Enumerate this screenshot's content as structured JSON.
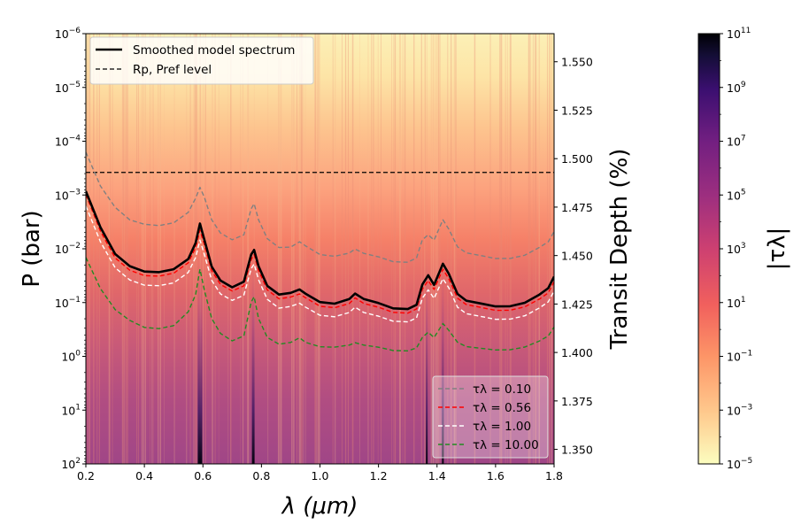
{
  "chart_data": {
    "type": "heatmap",
    "xlabel": "λ (μm)",
    "ylabel_left": "P (bar)",
    "ylabel_right": "Transit Depth (%)",
    "colorbar_label": "|τλ|",
    "x": {
      "range": [
        0.2,
        1.8
      ],
      "ticks": [
        0.2,
        0.4,
        0.6,
        0.8,
        1.0,
        1.2,
        1.4,
        1.6,
        1.8
      ],
      "tick_labels": [
        "0.2",
        "0.4",
        "0.6",
        "0.8",
        "1.0",
        "1.2",
        "1.4",
        "1.6",
        "1.8"
      ]
    },
    "y_left": {
      "scale": "log",
      "inverted": true,
      "range": [
        1e-06,
        100
      ],
      "ticks": [
        1e-06,
        1e-05,
        0.0001,
        0.001,
        0.01,
        0.1,
        1,
        10,
        100
      ],
      "tick_labels": [
        {
          "base": "10",
          "exp": "−6"
        },
        {
          "base": "10",
          "exp": "−5"
        },
        {
          "base": "10",
          "exp": "−4"
        },
        {
          "base": "10",
          "exp": "−3"
        },
        {
          "base": "10",
          "exp": "−2"
        },
        {
          "base": "10",
          "exp": "−1"
        },
        {
          "base": "10",
          "exp": "0"
        },
        {
          "base": "10",
          "exp": "1"
        },
        {
          "base": "10",
          "exp": "2"
        }
      ]
    },
    "y_right": {
      "range": [
        1.3425,
        1.5645
      ],
      "ticks": [
        1.35,
        1.375,
        1.4,
        1.425,
        1.45,
        1.475,
        1.5,
        1.525,
        1.55
      ],
      "tick_labels": [
        "1.350",
        "1.375",
        "1.400",
        "1.425",
        "1.450",
        "1.475",
        "1.500",
        "1.525",
        "1.550"
      ]
    },
    "colorbar": {
      "scale": "log",
      "range": [
        1e-05,
        100000000000.0
      ],
      "colormap": "magma_r",
      "ticks": [
        1e-05,
        0.001,
        0.1,
        10.0,
        1000.0,
        100000.0,
        10000000.0,
        1000000000.0,
        100000000000.0
      ],
      "tick_labels": [
        {
          "base": "10",
          "exp": "−5"
        },
        {
          "base": "10",
          "exp": "−3"
        },
        {
          "base": "10",
          "exp": "−1"
        },
        {
          "base": "10",
          "exp": "1"
        },
        {
          "base": "10",
          "exp": "3"
        },
        {
          "base": "10",
          "exp": "5"
        },
        {
          "base": "10",
          "exp": "7"
        },
        {
          "base": "10",
          "exp": "9"
        },
        {
          "base": "10",
          "exp": "11"
        }
      ]
    },
    "reference_level": {
      "pressure_bar": 0.00038
    },
    "series": [
      {
        "name": "Smoothed model spectrum",
        "axis": "pressure",
        "color": "#000000",
        "style": "solid",
        "points": [
          [
            0.2,
            0.00085
          ],
          [
            0.25,
            0.004
          ],
          [
            0.3,
            0.0125
          ],
          [
            0.35,
            0.021
          ],
          [
            0.4,
            0.0265
          ],
          [
            0.45,
            0.0272
          ],
          [
            0.5,
            0.024
          ],
          [
            0.55,
            0.0155
          ],
          [
            0.575,
            0.0078
          ],
          [
            0.59,
            0.0034
          ],
          [
            0.605,
            0.0068
          ],
          [
            0.63,
            0.0215
          ],
          [
            0.66,
            0.039
          ],
          [
            0.7,
            0.052
          ],
          [
            0.74,
            0.041
          ],
          [
            0.765,
            0.0128
          ],
          [
            0.775,
            0.0105
          ],
          [
            0.79,
            0.021
          ],
          [
            0.82,
            0.049
          ],
          [
            0.86,
            0.071
          ],
          [
            0.9,
            0.066
          ],
          [
            0.93,
            0.057
          ],
          [
            0.95,
            0.068
          ],
          [
            1.0,
            0.098
          ],
          [
            1.05,
            0.105
          ],
          [
            1.1,
            0.086
          ],
          [
            1.12,
            0.068
          ],
          [
            1.15,
            0.086
          ],
          [
            1.2,
            0.102
          ],
          [
            1.25,
            0.128
          ],
          [
            1.3,
            0.132
          ],
          [
            1.33,
            0.11
          ],
          [
            1.35,
            0.046
          ],
          [
            1.37,
            0.031
          ],
          [
            1.39,
            0.047
          ],
          [
            1.42,
            0.019
          ],
          [
            1.44,
            0.029
          ],
          [
            1.47,
            0.069
          ],
          [
            1.5,
            0.092
          ],
          [
            1.55,
            0.104
          ],
          [
            1.6,
            0.118
          ],
          [
            1.65,
            0.117
          ],
          [
            1.7,
            0.101
          ],
          [
            1.75,
            0.071
          ],
          [
            1.78,
            0.054
          ],
          [
            1.8,
            0.033
          ]
        ]
      },
      {
        "name": "τλ = 0.10",
        "axis": "pressure",
        "color": "#808080",
        "style": "dashed",
        "points": [
          [
            0.2,
            0.00016
          ],
          [
            0.25,
            0.00068
          ],
          [
            0.3,
            0.0017
          ],
          [
            0.35,
            0.0029
          ],
          [
            0.4,
            0.0035
          ],
          [
            0.45,
            0.0037
          ],
          [
            0.5,
            0.0033
          ],
          [
            0.55,
            0.0021
          ],
          [
            0.575,
            0.00115
          ],
          [
            0.59,
            0.00072
          ],
          [
            0.605,
            0.0011
          ],
          [
            0.63,
            0.0029
          ],
          [
            0.66,
            0.0051
          ],
          [
            0.7,
            0.0068
          ],
          [
            0.74,
            0.0055
          ],
          [
            0.765,
            0.0018
          ],
          [
            0.775,
            0.00145
          ],
          [
            0.79,
            0.0029
          ],
          [
            0.82,
            0.0065
          ],
          [
            0.86,
            0.0095
          ],
          [
            0.9,
            0.0093
          ],
          [
            0.93,
            0.0074
          ],
          [
            0.95,
            0.0088
          ],
          [
            1.0,
            0.0128
          ],
          [
            1.05,
            0.0138
          ],
          [
            1.1,
            0.012
          ],
          [
            1.12,
            0.0101
          ],
          [
            1.15,
            0.0122
          ],
          [
            1.2,
            0.0141
          ],
          [
            1.25,
            0.0174
          ],
          [
            1.3,
            0.0178
          ],
          [
            1.33,
            0.0148
          ],
          [
            1.35,
            0.0068
          ],
          [
            1.37,
            0.0055
          ],
          [
            1.39,
            0.0069
          ],
          [
            1.42,
            0.0029
          ],
          [
            1.44,
            0.0043
          ],
          [
            1.47,
            0.0092
          ],
          [
            1.5,
            0.0119
          ],
          [
            1.55,
            0.0134
          ],
          [
            1.6,
            0.0152
          ],
          [
            1.65,
            0.0151
          ],
          [
            1.7,
            0.0132
          ],
          [
            1.75,
            0.0094
          ],
          [
            1.78,
            0.0074
          ],
          [
            1.8,
            0.0048
          ]
        ]
      },
      {
        "name": "τλ = 0.56",
        "axis": "pressure",
        "color": "#ff0000",
        "style": "dashed",
        "points": [
          [
            0.2,
            0.00098
          ],
          [
            0.25,
            0.0047
          ],
          [
            0.3,
            0.0148
          ],
          [
            0.35,
            0.025
          ],
          [
            0.4,
            0.0315
          ],
          [
            0.45,
            0.0322
          ],
          [
            0.5,
            0.0285
          ],
          [
            0.55,
            0.0182
          ],
          [
            0.575,
            0.0095
          ],
          [
            0.59,
            0.0045
          ],
          [
            0.605,
            0.0084
          ],
          [
            0.63,
            0.0255
          ],
          [
            0.66,
            0.046
          ],
          [
            0.7,
            0.061
          ],
          [
            0.74,
            0.049
          ],
          [
            0.765,
            0.0158
          ],
          [
            0.775,
            0.0128
          ],
          [
            0.79,
            0.0252
          ],
          [
            0.82,
            0.058
          ],
          [
            0.86,
            0.085
          ],
          [
            0.9,
            0.079
          ],
          [
            0.93,
            0.069
          ],
          [
            0.95,
            0.081
          ],
          [
            1.0,
            0.117
          ],
          [
            1.05,
            0.125
          ],
          [
            1.1,
            0.104
          ],
          [
            1.12,
            0.082
          ],
          [
            1.15,
            0.104
          ],
          [
            1.2,
            0.122
          ],
          [
            1.25,
            0.152
          ],
          [
            1.3,
            0.157
          ],
          [
            1.33,
            0.131
          ],
          [
            1.35,
            0.056
          ],
          [
            1.37,
            0.039
          ],
          [
            1.39,
            0.057
          ],
          [
            1.42,
            0.024
          ],
          [
            1.44,
            0.036
          ],
          [
            1.47,
            0.083
          ],
          [
            1.5,
            0.109
          ],
          [
            1.55,
            0.123
          ],
          [
            1.6,
            0.14
          ],
          [
            1.65,
            0.139
          ],
          [
            1.7,
            0.12
          ],
          [
            1.75,
            0.086
          ],
          [
            1.78,
            0.066
          ],
          [
            1.8,
            0.041
          ]
        ]
      },
      {
        "name": "τλ = 1.00",
        "axis": "pressure",
        "color": "#ffffff",
        "style": "dashed",
        "points": [
          [
            0.2,
            0.0016
          ],
          [
            0.25,
            0.0074
          ],
          [
            0.3,
            0.0225
          ],
          [
            0.35,
            0.038
          ],
          [
            0.4,
            0.0475
          ],
          [
            0.45,
            0.0485
          ],
          [
            0.5,
            0.043
          ],
          [
            0.55,
            0.0275
          ],
          [
            0.575,
            0.0145
          ],
          [
            0.59,
            0.0069
          ],
          [
            0.605,
            0.0128
          ],
          [
            0.63,
            0.0385
          ],
          [
            0.66,
            0.069
          ],
          [
            0.7,
            0.091
          ],
          [
            0.74,
            0.073
          ],
          [
            0.765,
            0.0235
          ],
          [
            0.775,
            0.0192
          ],
          [
            0.79,
            0.0375
          ],
          [
            0.82,
            0.087
          ],
          [
            0.86,
            0.127
          ],
          [
            0.9,
            0.118
          ],
          [
            0.93,
            0.103
          ],
          [
            0.95,
            0.121
          ],
          [
            1.0,
            0.172
          ],
          [
            1.05,
            0.184
          ],
          [
            1.1,
            0.153
          ],
          [
            1.12,
            0.122
          ],
          [
            1.15,
            0.153
          ],
          [
            1.2,
            0.179
          ],
          [
            1.25,
            0.222
          ],
          [
            1.3,
            0.229
          ],
          [
            1.33,
            0.192
          ],
          [
            1.35,
            0.083
          ],
          [
            1.37,
            0.058
          ],
          [
            1.39,
            0.084
          ],
          [
            1.42,
            0.036
          ],
          [
            1.44,
            0.053
          ],
          [
            1.47,
            0.122
          ],
          [
            1.5,
            0.161
          ],
          [
            1.55,
            0.181
          ],
          [
            1.6,
            0.205
          ],
          [
            1.65,
            0.203
          ],
          [
            1.7,
            0.176
          ],
          [
            1.75,
            0.126
          ],
          [
            1.78,
            0.097
          ],
          [
            1.8,
            0.061
          ]
        ]
      },
      {
        "name": "τλ = 10.00",
        "axis": "pressure",
        "color": "#228b22",
        "style": "dashed",
        "points": [
          [
            0.2,
            0.0145
          ],
          [
            0.25,
            0.055
          ],
          [
            0.3,
            0.135
          ],
          [
            0.35,
            0.215
          ],
          [
            0.4,
            0.29
          ],
          [
            0.45,
            0.305
          ],
          [
            0.5,
            0.268
          ],
          [
            0.55,
            0.148
          ],
          [
            0.575,
            0.071
          ],
          [
            0.59,
            0.024
          ],
          [
            0.605,
            0.059
          ],
          [
            0.63,
            0.198
          ],
          [
            0.66,
            0.375
          ],
          [
            0.7,
            0.515
          ],
          [
            0.74,
            0.416
          ],
          [
            0.765,
            0.098
          ],
          [
            0.775,
            0.078
          ],
          [
            0.79,
            0.198
          ],
          [
            0.82,
            0.445
          ],
          [
            0.86,
            0.595
          ],
          [
            0.9,
            0.552
          ],
          [
            0.93,
            0.452
          ],
          [
            0.95,
            0.548
          ],
          [
            1.0,
            0.665
          ],
          [
            1.05,
            0.675
          ],
          [
            1.1,
            0.618
          ],
          [
            1.12,
            0.558
          ],
          [
            1.15,
            0.618
          ],
          [
            1.2,
            0.676
          ],
          [
            1.25,
            0.778
          ],
          [
            1.3,
            0.792
          ],
          [
            1.33,
            0.698
          ],
          [
            1.35,
            0.445
          ],
          [
            1.37,
            0.355
          ],
          [
            1.39,
            0.448
          ],
          [
            1.42,
            0.245
          ],
          [
            1.44,
            0.328
          ],
          [
            1.47,
            0.548
          ],
          [
            1.5,
            0.658
          ],
          [
            1.55,
            0.708
          ],
          [
            1.6,
            0.762
          ],
          [
            1.65,
            0.752
          ],
          [
            1.7,
            0.672
          ],
          [
            1.75,
            0.518
          ],
          [
            1.78,
            0.418
          ],
          [
            1.8,
            0.285
          ]
        ]
      }
    ],
    "legend_top": {
      "placement": "top-left",
      "entries": [
        {
          "label": "Smoothed model spectrum",
          "color": "#000000",
          "style": "solid"
        },
        {
          "label": "Rp, Pref level",
          "color": "#000000",
          "style": "dashed"
        }
      ]
    },
    "legend_bottom": {
      "placement": "bottom-right",
      "entries": [
        {
          "label": "τλ = 0.10",
          "color": "#808080"
        },
        {
          "label": "τλ = 0.56",
          "color": "#ff0000"
        },
        {
          "label": "τλ = 1.00",
          "color": "#ffffff"
        },
        {
          "label": "τλ = 10.00",
          "color": "#228b22"
        }
      ]
    }
  }
}
